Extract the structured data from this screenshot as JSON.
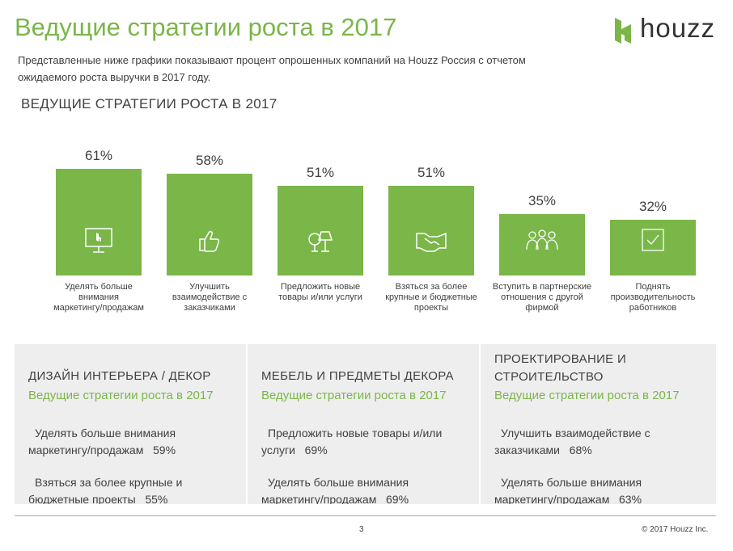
{
  "header": {
    "title": "Ведущие стратегии роста в 2017",
    "subtitle_line1": "Представленные ниже графики показывают процент опрошенных компаний на Houzz Россия с отчетом",
    "subtitle_line2": "ожидаемого роста выручки в 2017 году."
  },
  "logo": {
    "text": "houzz",
    "color": "#7ab648"
  },
  "chart_data": {
    "type": "bar",
    "title": "ВЕДУЩИЕ СТРАТЕГИИ РОСТА В 2017",
    "categories": [
      "Уделять больше внимания маркетингу/продажам",
      "Улучшить взаимодействие с заказчиками",
      "Предложить новые товары и/или услуги",
      "Взяться за более крупные и бюджетные проекты",
      "Вступить в партнерские отношения с другой фирмой",
      "Поднять производительность работников"
    ],
    "category_lines": [
      [
        "Уделять больше",
        "внимания",
        "маркетингу/продажам"
      ],
      [
        "Улучшить",
        "взаимодействие с",
        "заказчиками"
      ],
      [
        "Предложить новые",
        "товары и/или услуги"
      ],
      [
        "Взяться за более",
        "крупные и бюджетные",
        "проекты"
      ],
      [
        "Вступить в партнерские",
        "отношения с другой",
        "фирмой"
      ],
      [
        "Поднять",
        "производительность",
        "работников"
      ]
    ],
    "values": [
      61,
      58,
      51,
      51,
      35,
      32
    ],
    "value_labels": [
      "61%",
      "58%",
      "51%",
      "51%",
      "35%",
      "32%"
    ],
    "icons": [
      "monitor-icon",
      "thumbs-up-icon",
      "lamps-icon",
      "handshake-icon",
      "people-group-icon",
      "checkbox-icon"
    ],
    "bar_color": "#7ab648",
    "xlabel": "",
    "ylabel": "",
    "grid": false
  },
  "panels": [
    {
      "category": "ДИЗАЙН ИНТЕРЬЕРА / ДЕКОР",
      "subtitle": "Ведущие стратегии роста в 2017",
      "items": [
        {
          "line1": "Уделять больше внимания",
          "line2": "маркетингу/продажам",
          "value": "59%"
        },
        {
          "line1": "Взяться за более крупные и",
          "line2": "бюджетные проекты",
          "value": "55%"
        }
      ]
    },
    {
      "category": "МЕБЕЛЬ И ПРЕДМЕТЫ ДЕКОРА",
      "subtitle": "Ведущие стратегии роста в 2017",
      "items": [
        {
          "line1": "Предложить новые товары и/или",
          "line2": "услуги",
          "value": "69%"
        },
        {
          "line1": "Уделять больше внимания",
          "line2": "маркетингу/продажам",
          "value": "69%"
        }
      ]
    },
    {
      "category_line1": "ПРОЕКТИРОВАНИЕ И",
      "category_line2": "СТРОИТЕЛЬСТВО",
      "subtitle": "Ведущие стратегии роста в 2017",
      "items": [
        {
          "line1": "Улучшить взаимодействие с",
          "line2": "заказчиками",
          "value": "68%"
        },
        {
          "line1": "Уделять больше внимания",
          "line2": "маркетингу/продажам",
          "value": "63%"
        }
      ]
    }
  ],
  "footer": {
    "page": "3",
    "copyright": "© 2017 Houzz Inc."
  }
}
